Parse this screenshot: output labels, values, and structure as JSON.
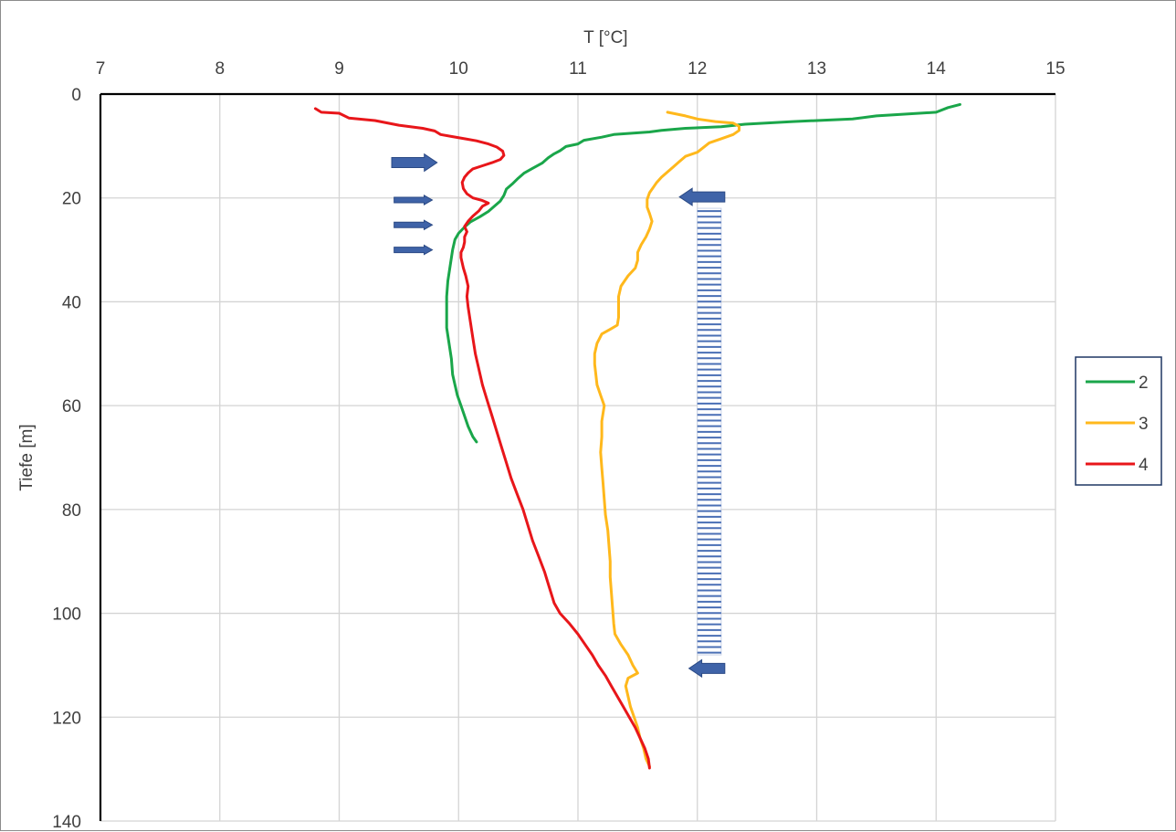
{
  "chart_data": {
    "type": "line",
    "title": "",
    "xlabel": "T [°C]",
    "ylabel": "Tiefe [m]",
    "x_axis_position": "top",
    "y_axis_inverted": true,
    "xlim": [
      7,
      15
    ],
    "ylim": [
      0,
      140
    ],
    "x_ticks": [
      "7",
      "8",
      "9",
      "10",
      "11",
      "12",
      "13",
      "14",
      "15"
    ],
    "y_ticks": [
      "0",
      "20",
      "40",
      "60",
      "80",
      "100",
      "120",
      "140"
    ],
    "grid": true,
    "legend_position": "right",
    "series": [
      {
        "name": "2",
        "color": "#1aa64a",
        "points": [
          [
            14.2,
            2
          ],
          [
            14.1,
            2.6
          ],
          [
            14.0,
            3.5
          ],
          [
            13.5,
            4.2
          ],
          [
            13.3,
            4.8
          ],
          [
            12.8,
            5.3
          ],
          [
            12.4,
            5.8
          ],
          [
            12.2,
            6.3
          ],
          [
            11.9,
            6.6
          ],
          [
            11.7,
            7.0
          ],
          [
            11.6,
            7.3
          ],
          [
            11.3,
            7.8
          ],
          [
            11.2,
            8.3
          ],
          [
            11.05,
            8.9
          ],
          [
            11.0,
            9.6
          ],
          [
            10.9,
            10.1
          ],
          [
            10.85,
            10.9
          ],
          [
            10.8,
            11.5
          ],
          [
            10.75,
            12.3
          ],
          [
            10.7,
            13.3
          ],
          [
            10.62,
            14.3
          ],
          [
            10.55,
            15.2
          ],
          [
            10.5,
            16.2
          ],
          [
            10.45,
            17.3
          ],
          [
            10.4,
            18.3
          ],
          [
            10.38,
            19.5
          ],
          [
            10.35,
            20.6
          ],
          [
            10.3,
            21.6
          ],
          [
            10.25,
            22.6
          ],
          [
            10.18,
            23.6
          ],
          [
            10.1,
            24.6
          ],
          [
            10.05,
            25.6
          ],
          [
            10.0,
            26.8
          ],
          [
            9.97,
            28
          ],
          [
            9.95,
            30
          ],
          [
            9.93,
            33
          ],
          [
            9.91,
            36
          ],
          [
            9.9,
            39
          ],
          [
            9.9,
            42
          ],
          [
            9.9,
            45
          ],
          [
            9.92,
            48
          ],
          [
            9.94,
            51
          ],
          [
            9.95,
            54
          ],
          [
            9.97,
            56
          ],
          [
            9.99,
            58
          ],
          [
            10.02,
            60
          ],
          [
            10.05,
            62
          ],
          [
            10.08,
            64
          ],
          [
            10.12,
            66
          ],
          [
            10.15,
            67
          ]
        ]
      },
      {
        "name": "3",
        "color": "#ffb81c",
        "points": [
          [
            11.75,
            3.5
          ],
          [
            11.9,
            4.2
          ],
          [
            12.0,
            4.8
          ],
          [
            12.15,
            5.3
          ],
          [
            12.3,
            5.6
          ],
          [
            12.35,
            6.2
          ],
          [
            12.35,
            7.0
          ],
          [
            12.3,
            7.8
          ],
          [
            12.2,
            8.6
          ],
          [
            12.1,
            9.4
          ],
          [
            12.05,
            10.3
          ],
          [
            12.0,
            11.2
          ],
          [
            11.9,
            12.0
          ],
          [
            11.85,
            13.0
          ],
          [
            11.8,
            14.0
          ],
          [
            11.75,
            15.0
          ],
          [
            11.7,
            16.0
          ],
          [
            11.66,
            17.0
          ],
          [
            11.63,
            18.0
          ],
          [
            11.6,
            19.0
          ],
          [
            11.58,
            20.3
          ],
          [
            11.58,
            21.8
          ],
          [
            11.6,
            23.0
          ],
          [
            11.62,
            24.5
          ],
          [
            11.6,
            26.0
          ],
          [
            11.57,
            27.5
          ],
          [
            11.53,
            29.0
          ],
          [
            11.5,
            30.5
          ],
          [
            11.5,
            32.0
          ],
          [
            11.48,
            33.5
          ],
          [
            11.42,
            35.0
          ],
          [
            11.36,
            37.0
          ],
          [
            11.34,
            39.0
          ],
          [
            11.34,
            41.0
          ],
          [
            11.34,
            43.0
          ],
          [
            11.33,
            44.5
          ],
          [
            11.27,
            45.3
          ],
          [
            11.2,
            46.2
          ],
          [
            11.16,
            48.0
          ],
          [
            11.14,
            50.0
          ],
          [
            11.14,
            52.0
          ],
          [
            11.15,
            54.0
          ],
          [
            11.16,
            56.0
          ],
          [
            11.19,
            58.0
          ],
          [
            11.22,
            60.0
          ],
          [
            11.2,
            63.0
          ],
          [
            11.2,
            66.0
          ],
          [
            11.19,
            69.0
          ],
          [
            11.2,
            72.0
          ],
          [
            11.21,
            75.0
          ],
          [
            11.22,
            78.0
          ],
          [
            11.23,
            81.0
          ],
          [
            11.25,
            84.0
          ],
          [
            11.26,
            87.0
          ],
          [
            11.27,
            90.0
          ],
          [
            11.27,
            93.0
          ],
          [
            11.28,
            96.0
          ],
          [
            11.29,
            99.0
          ],
          [
            11.3,
            102.0
          ],
          [
            11.31,
            104.0
          ],
          [
            11.36,
            106.0
          ],
          [
            11.42,
            108.0
          ],
          [
            11.46,
            110.0
          ],
          [
            11.5,
            111.5
          ],
          [
            11.42,
            112.5
          ],
          [
            11.4,
            114.0
          ],
          [
            11.42,
            116.0
          ],
          [
            11.44,
            118.0
          ],
          [
            11.47,
            120.0
          ],
          [
            11.5,
            122.0
          ],
          [
            11.52,
            124.0
          ],
          [
            11.55,
            126.0
          ],
          [
            11.57,
            128.0
          ],
          [
            11.6,
            129.5
          ]
        ]
      },
      {
        "name": "4",
        "color": "#e8161a",
        "points": [
          [
            8.8,
            2.8
          ],
          [
            8.85,
            3.5
          ],
          [
            9.0,
            3.7
          ],
          [
            9.08,
            4.6
          ],
          [
            9.3,
            5.1
          ],
          [
            9.5,
            6.0
          ],
          [
            9.7,
            6.6
          ],
          [
            9.8,
            7.1
          ],
          [
            9.85,
            7.8
          ],
          [
            9.95,
            8.2
          ],
          [
            10.05,
            8.6
          ],
          [
            10.15,
            9.0
          ],
          [
            10.25,
            9.6
          ],
          [
            10.32,
            10.2
          ],
          [
            10.37,
            11.0
          ],
          [
            10.38,
            11.8
          ],
          [
            10.35,
            12.6
          ],
          [
            10.28,
            13.2
          ],
          [
            10.2,
            13.8
          ],
          [
            10.12,
            14.4
          ],
          [
            10.08,
            15.2
          ],
          [
            10.05,
            16.0
          ],
          [
            10.03,
            17.0
          ],
          [
            10.04,
            18.2
          ],
          [
            10.07,
            19.2
          ],
          [
            10.12,
            20.0
          ],
          [
            10.2,
            20.5
          ],
          [
            10.25,
            21.0
          ],
          [
            10.2,
            21.6
          ],
          [
            10.17,
            22.5
          ],
          [
            10.12,
            23.5
          ],
          [
            10.08,
            24.5
          ],
          [
            10.05,
            25.5
          ],
          [
            10.07,
            26.5
          ],
          [
            10.05,
            27.5
          ],
          [
            10.05,
            28.5
          ],
          [
            10.04,
            29.5
          ],
          [
            10.02,
            30.5
          ],
          [
            10.02,
            31.5
          ],
          [
            10.03,
            32.5
          ],
          [
            10.04,
            33.5
          ],
          [
            10.06,
            35.0
          ],
          [
            10.08,
            37.0
          ],
          [
            10.07,
            39.0
          ],
          [
            10.08,
            41.0
          ],
          [
            10.1,
            44.0
          ],
          [
            10.12,
            47.0
          ],
          [
            10.14,
            50.0
          ],
          [
            10.17,
            53.0
          ],
          [
            10.2,
            56.0
          ],
          [
            10.24,
            59.0
          ],
          [
            10.28,
            62.0
          ],
          [
            10.32,
            65.0
          ],
          [
            10.36,
            68.0
          ],
          [
            10.4,
            71.0
          ],
          [
            10.44,
            74.0
          ],
          [
            10.49,
            77.0
          ],
          [
            10.54,
            80.0
          ],
          [
            10.58,
            83.0
          ],
          [
            10.62,
            86.0
          ],
          [
            10.67,
            89.0
          ],
          [
            10.72,
            92.0
          ],
          [
            10.76,
            95.0
          ],
          [
            10.8,
            98.0
          ],
          [
            10.85,
            100.0
          ],
          [
            10.93,
            102.0
          ],
          [
            11.0,
            104.0
          ],
          [
            11.06,
            106.0
          ],
          [
            11.12,
            108.0
          ],
          [
            11.17,
            110.0
          ],
          [
            11.23,
            112.0
          ],
          [
            11.28,
            114.0
          ],
          [
            11.33,
            116.0
          ],
          [
            11.38,
            118.0
          ],
          [
            11.43,
            120.0
          ],
          [
            11.48,
            122.0
          ],
          [
            11.52,
            124.0
          ],
          [
            11.56,
            126.0
          ],
          [
            11.59,
            128.0
          ],
          [
            11.6,
            129.8
          ]
        ]
      }
    ],
    "annotations": {
      "arrows_right": [
        {
          "x_start": 9.44,
          "x_end": 9.82,
          "y": 13.2,
          "size": "large"
        },
        {
          "x_start": 9.46,
          "x_end": 9.78,
          "y": 20.4,
          "size": "small"
        },
        {
          "x_start": 9.46,
          "x_end": 9.78,
          "y": 25.2,
          "size": "small"
        },
        {
          "x_start": 9.46,
          "x_end": 9.78,
          "y": 30.0,
          "size": "small"
        }
      ],
      "arrows_left": [
        {
          "x_start": 12.23,
          "x_end": 11.85,
          "y": 19.8
        },
        {
          "x_start": 12.23,
          "x_end": 11.93,
          "y": 110.6
        }
      ],
      "screen_section": {
        "x_start": 12.0,
        "x_end": 12.2,
        "y_start": 22,
        "y_end": 108,
        "color": "#4a6fb5"
      },
      "arrow_color": "#3f63a8"
    }
  }
}
